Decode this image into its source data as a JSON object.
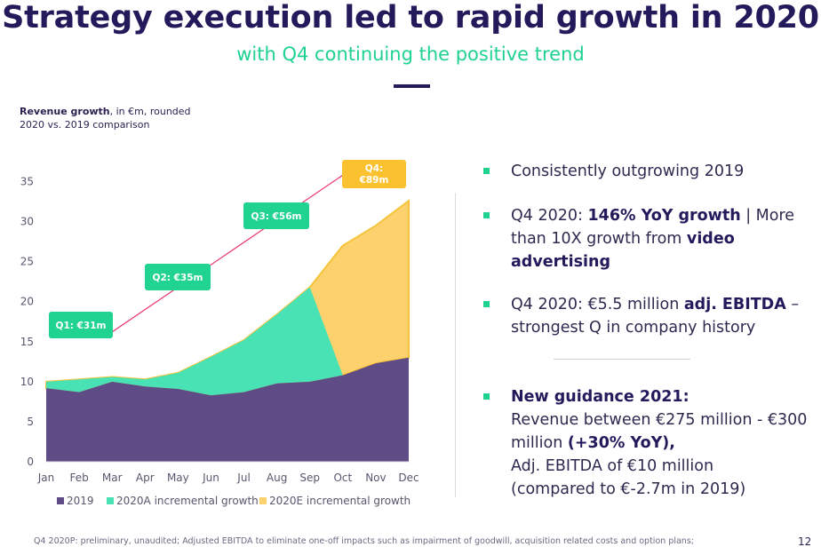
{
  "title": "Strategy execution led to rapid growth in 2020",
  "subtitle": "with Q4 continuing the positive trend",
  "caption": {
    "bold": "Revenue growth",
    "rest": ", in €m, rounded",
    "line2": "2020 vs. 2019 comparison"
  },
  "chart_data": {
    "type": "area",
    "categories": [
      "Jan",
      "Feb",
      "Mar",
      "Apr",
      "May",
      "Jun",
      "Jul",
      "Aug",
      "Sep",
      "Oct",
      "Nov",
      "Dec"
    ],
    "ylim": [
      0,
      37
    ],
    "yticks": [
      "0",
      "5",
      "10",
      "15",
      "20",
      "25",
      "30",
      "35"
    ],
    "series": [
      {
        "name": "2019",
        "color": "#5f4b85",
        "values": [
          9.2,
          8.7,
          10.0,
          9.4,
          9.1,
          8.3,
          8.7,
          9.8,
          10.0,
          10.8,
          12.3,
          13.0
        ]
      },
      {
        "name": "2020A incremental growth",
        "color": "#49e2b4",
        "values": [
          10.0,
          10.3,
          10.6,
          10.3,
          11.1,
          13.1,
          15.2,
          18.4,
          21.8,
          null,
          null,
          null
        ]
      },
      {
        "name": "2020E incremental growth",
        "color": "#fdd26e",
        "values": [
          null,
          null,
          null,
          null,
          null,
          null,
          null,
          null,
          21.8,
          27.0,
          29.5,
          32.6
        ]
      }
    ],
    "annotations": [
      {
        "label": "Q1: €31m",
        "color": "#20d391"
      },
      {
        "label": "Q2: €35m",
        "color": "#20d391"
      },
      {
        "label": "Q3: €56m",
        "color": "#20d391"
      },
      {
        "label_line1": "Q4:",
        "label_line2": "€89m",
        "color": "#fcc12e"
      }
    ],
    "legend_position": "bottom"
  },
  "bullets": {
    "b1": "Consistently outgrowing 2019",
    "b2_a": "Q4 2020: ",
    "b2_b": "146% YoY growth",
    "b2_c": " | More than 10X growth from ",
    "b2_d": "video advertising",
    "b3_a": "Q4 2020: €5.5 million ",
    "b3_b": "adj. EBITDA",
    "b3_c": " – strongest Q in company history",
    "b4_head": "New guidance 2021:",
    "b4_l1": "Revenue between €275 million - €300 million ",
    "b4_l1b": "(+30% YoY),",
    "b4_l2": "Adj. EBITDA of €10 million",
    "b4_l3": "(compared to €-2.7m in 2019)"
  },
  "footnote": "Q4 2020P: preliminary, unaudited; Adjusted EBITDA to eliminate one-off impacts such as impairment of goodwill, acquisition related costs and option plans;",
  "page_number": "12"
}
